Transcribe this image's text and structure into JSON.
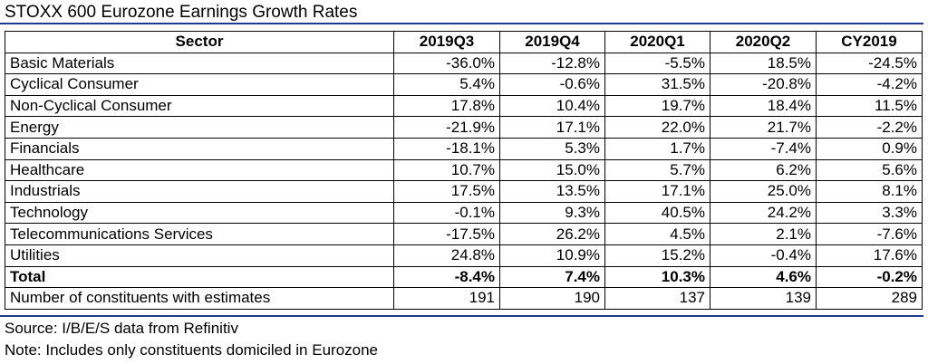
{
  "title": "STOXX 600 Eurozone Earnings Growth Rates",
  "headers": [
    "Sector",
    "2019Q3",
    "2019Q4",
    "2020Q1",
    "2020Q2",
    "CY2019"
  ],
  "rows": [
    {
      "sector": "Basic Materials",
      "values": [
        "-36.0%",
        "-12.8%",
        "-5.5%",
        "18.5%",
        "-24.5%"
      ]
    },
    {
      "sector": "Cyclical Consumer",
      "values": [
        "5.4%",
        "-0.6%",
        "31.5%",
        "-20.8%",
        "-4.2%"
      ]
    },
    {
      "sector": "Non-Cyclical Consumer",
      "values": [
        "17.8%",
        "10.4%",
        "19.7%",
        "18.4%",
        "11.5%"
      ]
    },
    {
      "sector": "Energy",
      "values": [
        "-21.9%",
        "17.1%",
        "22.0%",
        "21.7%",
        "-2.2%"
      ]
    },
    {
      "sector": "Financials",
      "values": [
        "-18.1%",
        "5.3%",
        "1.7%",
        "-7.4%",
        "0.9%"
      ]
    },
    {
      "sector": "Healthcare",
      "values": [
        "10.7%",
        "15.0%",
        "5.7%",
        "6.2%",
        "5.6%"
      ]
    },
    {
      "sector": "Industrials",
      "values": [
        "17.5%",
        "13.5%",
        "17.1%",
        "25.0%",
        "8.1%"
      ]
    },
    {
      "sector": "Technology",
      "values": [
        "-0.1%",
        "9.3%",
        "40.5%",
        "24.2%",
        "3.3%"
      ]
    },
    {
      "sector": "Telecommunications Services",
      "values": [
        "-17.5%",
        "26.2%",
        "4.5%",
        "2.1%",
        "-7.6%"
      ]
    },
    {
      "sector": "Utilities",
      "values": [
        "24.8%",
        "10.9%",
        "15.2%",
        "-0.4%",
        "17.6%"
      ]
    }
  ],
  "total": {
    "label": "Total",
    "values": [
      "-8.4%",
      "7.4%",
      "10.3%",
      "4.6%",
      "-0.2%"
    ]
  },
  "constituents": {
    "label": "Number of constituents with estimates",
    "values": [
      "191",
      "190",
      "137",
      "139",
      "289"
    ]
  },
  "source": "Source: I/B/E/S data from Refinitiv",
  "note": "Note: Includes only constituents domiciled in Eurozone",
  "colors": {
    "rule": "#1f3a8a"
  }
}
